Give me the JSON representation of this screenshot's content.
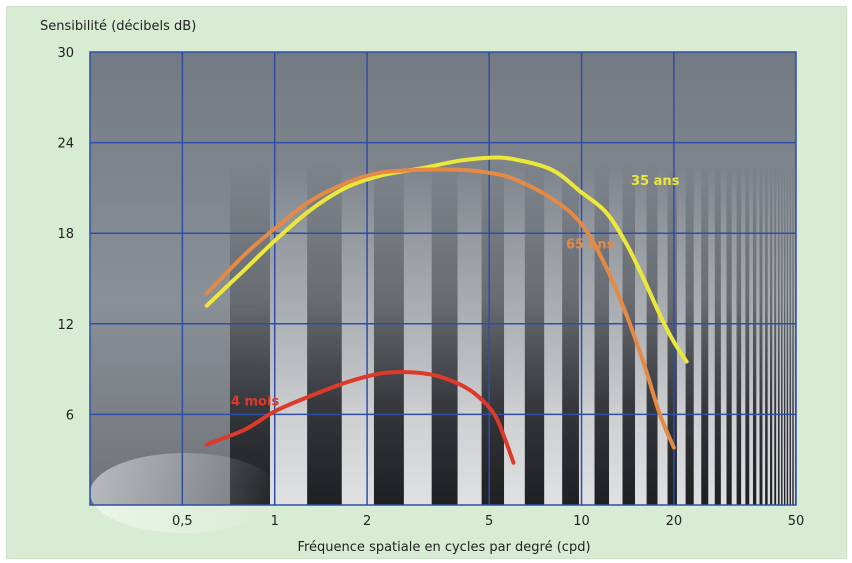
{
  "chart_data": {
    "type": "line",
    "xlabel": "Fréquence spatiale en cycles par degré (cpd)",
    "ylabel": "Sensibilité (décibels dB)",
    "x_scale": "log",
    "xlim": [
      0.25,
      50
    ],
    "ylim": [
      0,
      30
    ],
    "x_ticks": [
      {
        "value": 0.5,
        "label": "0,5"
      },
      {
        "value": 1,
        "label": "1"
      },
      {
        "value": 2,
        "label": "2"
      },
      {
        "value": 5,
        "label": "5"
      },
      {
        "value": 10,
        "label": "10"
      },
      {
        "value": 20,
        "label": "20"
      },
      {
        "value": 50,
        "label": "50"
      }
    ],
    "y_ticks": [
      {
        "value": 6,
        "label": "6"
      },
      {
        "value": 12,
        "label": "12"
      },
      {
        "value": 18,
        "label": "18"
      },
      {
        "value": 24,
        "label": "24"
      },
      {
        "value": 30,
        "label": "30"
      }
    ],
    "grid": true,
    "series": [
      {
        "name": "35 ans",
        "color": "#ece83a",
        "x": [
          0.6,
          0.8,
          1.0,
          1.3,
          1.7,
          2.2,
          3.0,
          4.0,
          5.0,
          6.0,
          8.0,
          10.0,
          12.0,
          14.0,
          16.0,
          18.0,
          20.0,
          22.0
        ],
        "y": [
          13.2,
          15.6,
          17.5,
          19.5,
          21.0,
          21.8,
          22.3,
          22.8,
          23.0,
          22.9,
          22.2,
          20.7,
          19.4,
          17.3,
          14.9,
          12.6,
          10.8,
          9.5
        ]
      },
      {
        "name": "65 ans",
        "color": "#e58a45",
        "x": [
          0.6,
          0.8,
          1.0,
          1.3,
          1.7,
          2.2,
          3.0,
          4.0,
          5.0,
          6.0,
          8.0,
          10.0,
          12.0,
          14.0,
          16.0,
          18.0,
          20.0
        ],
        "y": [
          14.0,
          16.6,
          18.3,
          20.1,
          21.3,
          22.0,
          22.2,
          22.2,
          22.0,
          21.6,
          20.3,
          18.6,
          15.8,
          12.6,
          9.3,
          6.0,
          3.8
        ]
      },
      {
        "name": "4 mois",
        "color": "#dd3a2a",
        "x": [
          0.6,
          0.8,
          1.0,
          1.3,
          1.7,
          2.2,
          2.7,
          3.3,
          4.0,
          4.6,
          5.2,
          5.6,
          6.0
        ],
        "y": [
          4.0,
          5.0,
          6.2,
          7.2,
          8.1,
          8.7,
          8.8,
          8.6,
          8.0,
          7.2,
          6.0,
          4.5,
          2.8
        ]
      }
    ],
    "annotations": [
      {
        "series": "35 ans",
        "text": "35 ans",
        "x": 14.5,
        "y": 21.2
      },
      {
        "series": "65 ans",
        "text": "65 ans",
        "x": 8.9,
        "y": 17.0
      },
      {
        "series": "4 mois",
        "text": "4 mois",
        "x": 0.72,
        "y": 6.6
      }
    ]
  }
}
